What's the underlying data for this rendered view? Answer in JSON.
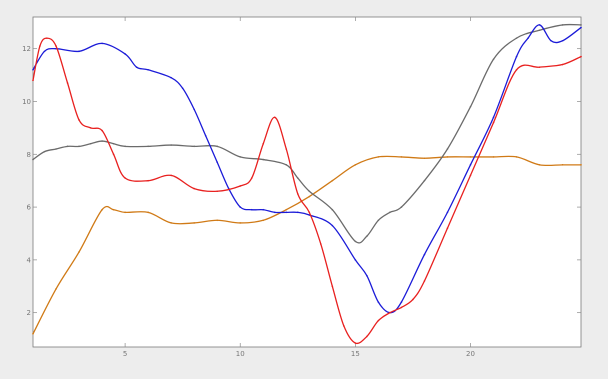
{
  "chart_data": {
    "type": "line",
    "title": "",
    "xlabel": "",
    "ylabel": "",
    "xlim": [
      1,
      24.8
    ],
    "ylim": [
      0.7,
      13.2
    ],
    "grid": false,
    "x_ticks": [
      5,
      10,
      15,
      20
    ],
    "y_ticks": [
      2,
      4,
      6,
      8,
      10,
      12
    ],
    "x_tick_labels": [
      "5",
      "10",
      "15",
      "20"
    ],
    "y_tick_labels": [
      "2",
      "4",
      "6",
      "8",
      "10",
      "12"
    ],
    "series": [
      {
        "color": "#e8201f",
        "x": [
          1,
          1.3,
          1.6,
          2,
          2.5,
          3,
          3.5,
          4,
          4.5,
          5,
          6,
          7,
          8,
          9,
          10,
          10.5,
          11,
          11.5,
          12,
          12.5,
          13,
          13.5,
          14,
          14.5,
          15,
          15.5,
          16,
          16.5,
          17,
          17.5,
          18,
          19,
          20,
          21,
          22,
          23,
          24,
          24.8
        ],
        "y": [
          10.8,
          12.1,
          12.4,
          12.1,
          10.7,
          9.3,
          9.0,
          8.9,
          8.0,
          7.1,
          7.0,
          7.2,
          6.7,
          6.6,
          6.8,
          7.1,
          8.4,
          9.4,
          8.2,
          6.5,
          5.8,
          4.6,
          3.0,
          1.5,
          0.85,
          1.1,
          1.7,
          2.0,
          2.2,
          2.5,
          3.2,
          5.2,
          7.2,
          9.2,
          11.2,
          11.3,
          11.4,
          11.7
        ]
      },
      {
        "color": "#1b1bd8",
        "x": [
          1,
          1.5,
          2,
          3,
          4,
          5,
          5.5,
          6,
          7,
          7.5,
          8,
          8.5,
          9,
          9.5,
          10,
          10.5,
          11,
          11.5,
          12,
          12.5,
          13,
          14,
          15,
          15.5,
          16,
          16.5,
          17,
          18,
          19,
          20,
          21,
          22,
          22.5,
          23,
          23.5,
          24,
          24.8
        ],
        "y": [
          11.2,
          11.9,
          12.0,
          11.9,
          12.2,
          11.8,
          11.3,
          11.2,
          10.9,
          10.5,
          9.7,
          8.7,
          7.7,
          6.7,
          6.0,
          5.9,
          5.9,
          5.8,
          5.8,
          5.8,
          5.7,
          5.3,
          4.0,
          3.4,
          2.4,
          2.0,
          2.4,
          4.2,
          5.8,
          7.6,
          9.4,
          11.7,
          12.4,
          12.9,
          12.3,
          12.3,
          12.8
        ]
      },
      {
        "color": "#6b6b6b",
        "x": [
          1,
          1.5,
          2,
          2.5,
          3,
          3.5,
          4,
          4.5,
          5,
          6,
          7,
          8,
          9,
          10,
          11,
          12,
          12.5,
          13,
          14,
          15,
          15.5,
          16,
          16.5,
          17,
          18,
          19,
          20,
          21,
          22,
          23,
          24,
          24.8
        ],
        "y": [
          7.8,
          8.1,
          8.2,
          8.3,
          8.3,
          8.4,
          8.5,
          8.4,
          8.3,
          8.3,
          8.35,
          8.3,
          8.3,
          7.9,
          7.8,
          7.6,
          7.1,
          6.6,
          5.9,
          4.7,
          4.9,
          5.5,
          5.8,
          6.0,
          7.0,
          8.2,
          9.8,
          11.6,
          12.4,
          12.7,
          12.9,
          12.9
        ]
      },
      {
        "color": "#d07a16",
        "x": [
          1,
          2,
          3,
          4,
          4.5,
          5,
          6,
          7,
          8,
          9,
          10,
          11,
          12,
          13,
          14,
          15,
          16,
          17,
          18,
          19,
          20,
          21,
          22,
          23,
          24,
          24.8
        ],
        "y": [
          1.2,
          2.9,
          4.3,
          5.9,
          5.9,
          5.8,
          5.8,
          5.4,
          5.4,
          5.5,
          5.4,
          5.5,
          5.9,
          6.4,
          7.0,
          7.6,
          7.9,
          7.9,
          7.85,
          7.9,
          7.9,
          7.9,
          7.9,
          7.6,
          7.6,
          7.6
        ]
      }
    ]
  }
}
